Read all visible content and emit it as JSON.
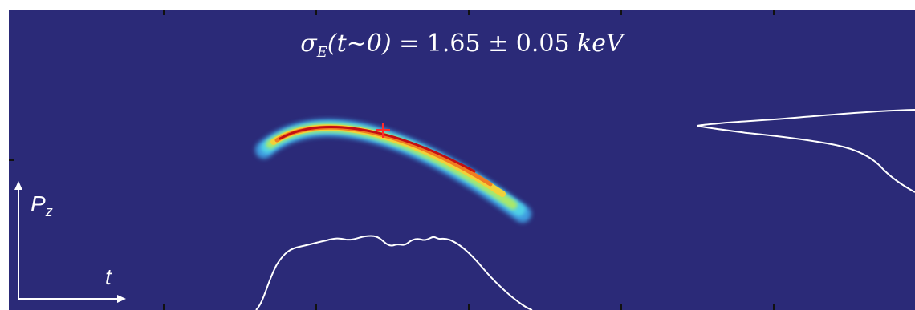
{
  "figure": {
    "title_symbol": "σ",
    "title_symbol_sub": "E",
    "title_arg": "(t~0)",
    "title_value": " = 1.65 ± 0.05 ",
    "title_unit": "keV",
    "vertical_axis_label": "P",
    "vertical_axis_label_sub": "z",
    "horizontal_axis_label": "t"
  },
  "colors": {
    "background": "#2b2a78",
    "profile_lines": "#ffffff",
    "hot_core": "#c40f12",
    "halo": "#39c4e0",
    "marker": "#ff2a2a"
  }
}
